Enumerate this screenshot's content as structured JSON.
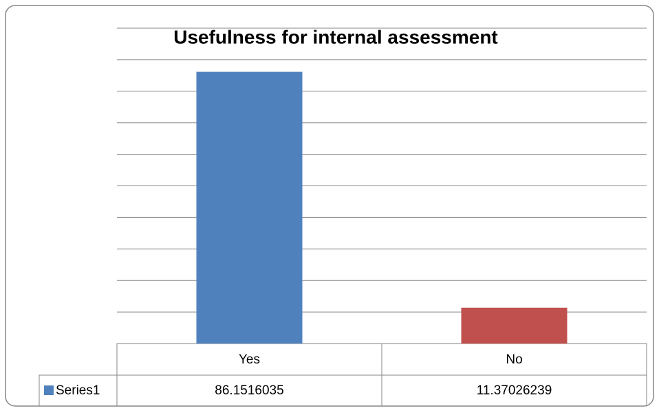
{
  "chart_data": {
    "type": "bar",
    "title": "Usefulness for internal assessment",
    "categories": [
      "Yes",
      "No"
    ],
    "series": [
      {
        "name": "Series1",
        "color": "#4f81bd",
        "point_colors": [
          "#4f81bd",
          "#c0504d"
        ],
        "values": [
          86.1516035,
          11.37026239
        ]
      }
    ],
    "ylim": [
      0,
      100
    ],
    "yticks": [
      0,
      10,
      20,
      30,
      40,
      50,
      60,
      70,
      80,
      90,
      100
    ],
    "grid": true,
    "data_table": true
  }
}
